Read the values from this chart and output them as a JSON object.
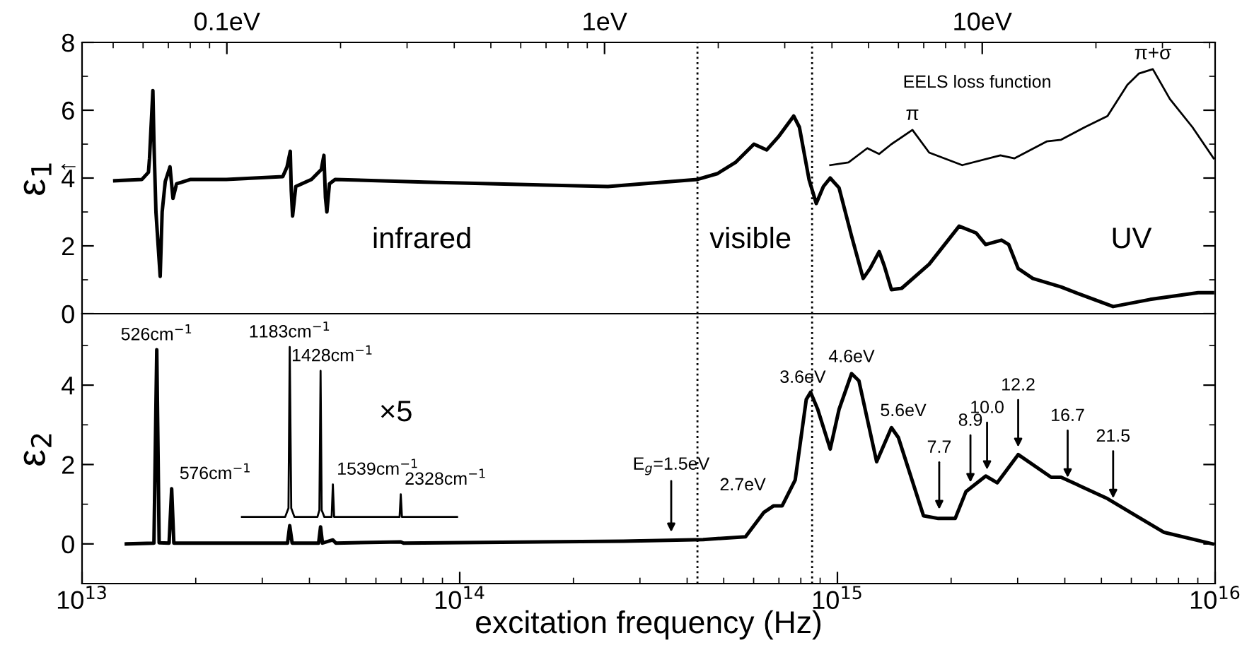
{
  "chart_data": [
    {
      "type": "line",
      "ylabel": "ε$_{1}$",
      "xlim": [
        0.04136,
        41.36
      ],
      "ylim": [
        0,
        8
      ],
      "log": "x",
      "yticks": [
        0,
        {
          "value": 1,
          "label": null
        },
        2,
        {
          "value": 3,
          "label": null
        },
        4,
        {
          "value": 5,
          "label": null
        },
        6,
        {
          "value": 7,
          "label": null
        },
        8
      ],
      "xticks": [
        {
          "value": 0.05,
          "label": null
        },
        {
          "value": 0.06,
          "label": null
        },
        {
          "value": 0.07,
          "label": null
        },
        {
          "value": 0.08,
          "label": null
        },
        {
          "value": 0.09,
          "label": null
        },
        {
          "value": 0.1,
          "label": "0.1eV"
        },
        {
          "value": 0.2,
          "label": null
        },
        {
          "value": 0.3,
          "label": null
        },
        {
          "value": 0.4,
          "label": null
        },
        {
          "value": 0.5,
          "label": null
        },
        {
          "value": 0.6,
          "label": null
        },
        {
          "value": 0.7,
          "label": null
        },
        {
          "value": 0.8,
          "label": null
        },
        {
          "value": 0.9,
          "label": null
        },
        {
          "value": 1,
          "label": "1eV"
        },
        {
          "value": 2,
          "label": null
        },
        {
          "value": 3,
          "label": null
        },
        {
          "value": 4,
          "label": null
        },
        {
          "value": 5,
          "label": null
        },
        {
          "value": 6,
          "label": null
        },
        {
          "value": 7,
          "label": null
        },
        {
          "value": 8,
          "label": null
        },
        {
          "value": 9,
          "label": null
        },
        {
          "value": 10,
          "label": "10eV"
        },
        {
          "value": 20,
          "label": null
        },
        {
          "value": 30,
          "label": null
        },
        {
          "value": 40,
          "label": null
        }
      ],
      "grid": false,
      "legend": false,
      "marker": "none",
      "line_style": "solid",
      "series": [
        {
          "color": "#000000",
          "x": [
            0.0505,
            0.0596,
            0.062,
            0.0624,
            0.0637,
            0.0641,
            0.0649,
            0.0666,
            0.0674,
            0.0687,
            0.0707,
            0.072,
            0.0736,
            0.0802,
            0.0997,
            0.1406,
            0.1443,
            0.1472,
            0.1481,
            0.1493,
            0.1522,
            0.1675,
            0.1778,
            0.1807,
            0.1824,
            0.184,
            0.1869,
            0.1935,
            0.333,
            1.021,
            1.762,
            1.989,
            2.221,
            2.486,
            2.688,
            2.883,
            3.168,
            3.28,
            3.478,
            3.635,
            3.797,
            3.958,
            4.177,
            4.508,
            4.839,
            5.046,
            5.335,
            5.5,
            5.749,
            6.121,
            7.237,
            8.685,
            9.636,
            10.21,
            11.25,
            11.75,
            12.45,
            13.61,
            16.17,
            18.07,
            22.21,
            27.83,
            37.3,
            40.69
          ],
          "values": [
            3.92,
            3.96,
            4.17,
            4.58,
            6.58,
            5.08,
            3.0,
            1.1,
            3.0,
            3.9,
            4.33,
            3.4,
            3.83,
            3.96,
            3.96,
            4.04,
            4.33,
            4.79,
            3.63,
            2.88,
            3.75,
            3.96,
            4.25,
            4.67,
            3.42,
            3.0,
            3.83,
            3.96,
            3.88,
            3.75,
            3.96,
            4.13,
            4.46,
            5.0,
            4.83,
            5.21,
            5.83,
            5.5,
            3.96,
            3.25,
            3.75,
            4.0,
            3.71,
            2.29,
            1.04,
            1.33,
            1.83,
            1.42,
            0.71,
            0.75,
            1.46,
            2.58,
            2.38,
            2.04,
            2.17,
            2.04,
            1.33,
            1.04,
            0.79,
            0.58,
            0.21,
            0.42,
            0.62,
            0.62
          ]
        },
        {
          "color": "#000000",
          "x": [
            3.958,
            4.425,
            4.963,
            5.335,
            5.749,
            6.534,
            7.237,
            8.85,
            11.17,
            12.16,
            14.81,
            16.17,
            18.69,
            21.46,
            24.23,
            25.97,
            28.29,
            31.39,
            36.02,
            40.98
          ],
          "values": [
            4.38,
            4.46,
            4.88,
            4.71,
            5.0,
            5.42,
            4.75,
            4.38,
            4.67,
            4.58,
            5.08,
            5.13,
            5.5,
            5.83,
            6.75,
            7.08,
            7.21,
            6.33,
            5.5,
            4.58
          ]
        }
      ],
      "ref_lines": [
        {
          "axis": "x",
          "value": 1.762,
          "color": "#000000",
          "line_style": "dotted"
        },
        {
          "axis": "x",
          "value": 3.544,
          "color": "#000000",
          "line_style": "dotted"
        }
      ],
      "annotations": [
        "infrared",
        "visible",
        "UV",
        "EELS loss function",
        {
          "text": "π",
          "x": 6.534,
          "y": 5.42
        },
        {
          "text": "π+σ",
          "x": 28.29,
          "y": 7.21
        },
        "←"
      ]
    },
    {
      "type": "line",
      "ylabel": "ε$_{2}$",
      "xlabel": "excitation frequency (Hz)",
      "xlim": [
        10000000000000.0,
        1e+16
      ],
      "ylim": [
        -1,
        5.8
      ],
      "log": "x",
      "xticks": [
        {
          "value": 10000000000000.0,
          "label": "10$^{13}$"
        },
        {
          "value": 20000000000000.0,
          "label": null
        },
        {
          "value": 30000000000000.0,
          "label": null
        },
        {
          "value": 40000000000000.0,
          "label": null
        },
        {
          "value": 50000000000000.0,
          "label": null
        },
        {
          "value": 60000000000000.0,
          "label": null
        },
        {
          "value": 70000000000000.0,
          "label": null
        },
        {
          "value": 80000000000000.0,
          "label": null
        },
        {
          "value": 90000000000000.0,
          "label": null
        },
        {
          "value": 100000000000000.0,
          "label": "10$^{14}$"
        },
        {
          "value": 200000000000000.0,
          "label": null
        },
        {
          "value": 300000000000000.0,
          "label": null
        },
        {
          "value": 400000000000000.0,
          "label": null
        },
        {
          "value": 500000000000000.0,
          "label": null
        },
        {
          "value": 600000000000000.0,
          "label": null
        },
        {
          "value": 700000000000000.0,
          "label": null
        },
        {
          "value": 800000000000000.0,
          "label": null
        },
        {
          "value": 900000000000000.0,
          "label": null
        },
        {
          "value": 1000000000000000.0,
          "label": "10$^{15}$"
        },
        {
          "value": 2000000000000000.0,
          "label": null
        },
        {
          "value": 3000000000000000.0,
          "label": null
        },
        {
          "value": 4000000000000000.0,
          "label": null
        },
        {
          "value": 5000000000000000.0,
          "label": null
        },
        {
          "value": 6000000000000000.0,
          "label": null
        },
        {
          "value": 7000000000000000.0,
          "label": null
        },
        {
          "value": 8000000000000000.0,
          "label": null
        },
        {
          "value": 9000000000000000.0,
          "label": null
        },
        {
          "value": 1e+16,
          "label": "10$^{16}$"
        }
      ],
      "yticks": [
        {
          "value": -1,
          "label": null
        },
        0,
        {
          "value": 1,
          "label": null
        },
        2,
        {
          "value": 3,
          "label": null
        },
        4,
        {
          "value": 5,
          "label": null
        }
      ],
      "grid": false,
      "legend": false,
      "marker": "none",
      "line_style": "solid",
      "series": [
        {
          "color": "#000000",
          "x": [
            13100000000000.0,
            15500000000000.0,
            15770000000000.0,
            16000000000000.0,
            17000000000000.0,
            17270000000000.0,
            17500000000000.0,
            35000000000000.0,
            35470000000000.0,
            36000000000000.0,
            42300000000000.0,
            42810000000000.0,
            43300000000000.0,
            46140000000000.0,
            47000000000000.0,
            69800000000000.0,
            71000000000000.0,
            271000000000000.0,
            441000000000000.0,
            571000000000000.0,
            638000000000000.0,
            678000000000000.0,
            714000000000000.0,
            773000000000000.0,
            827000000000000.0,
            849000000000000.0,
            887000000000000.0,
            957000000000000.0,
            1010000000000000.0,
            1090000000000000.0,
            1140000000000000.0,
            1270000000000000.0,
            1390000000000000.0,
            1450000000000000.0,
            1690000000000000.0,
            1850000000000000.0,
            2050000000000000.0,
            2190000000000000.0,
            2470000000000000.0,
            2650000000000000.0,
            3010000000000000.0,
            3680000000000000.0,
            3910000000000000.0,
            5190000000000000.0,
            6170000000000000.0,
            7330000000000000.0,
            9840000000000000.0
          ],
          "values": [
            0,
            0.02,
            4.89,
            0.03,
            0.02,
            1.39,
            0.02,
            0.02,
            0.46,
            0.02,
            0.02,
            0.43,
            0.02,
            0.1,
            0.02,
            0.05,
            0.02,
            0.07,
            0.11,
            0.18,
            0.79,
            0.96,
            0.96,
            1.61,
            3.64,
            3.82,
            3.39,
            2.39,
            3.39,
            4.29,
            4.11,
            2.07,
            2.93,
            2.68,
            0.71,
            0.64,
            0.64,
            1.32,
            1.71,
            1.54,
            2.25,
            1.68,
            1.68,
            1.14,
            0.71,
            0.29,
            0
          ]
        },
        {
          "color": "#000000",
          "x": [
            26500000000000.0,
            34500000000000.0,
            35200000000000.0,
            35470000000000.0,
            35800000000000.0,
            36500000000000.0,
            42000000000000.0,
            42500000000000.0,
            42810000000000.0,
            43100000000000.0,
            43800000000000.0,
            45800000000000.0,
            46140000000000.0,
            46500000000000.0,
            69300000000000.0,
            69800000000000.0,
            70300000000000.0,
            98400000000000.0
          ],
          "values": [
            0.68,
            0.68,
            0.9,
            4.96,
            0.9,
            0.68,
            0.68,
            0.85,
            4.36,
            0.85,
            0.68,
            0.68,
            1.5,
            0.68,
            0.68,
            1.25,
            0.68,
            0.68
          ]
        }
      ],
      "ref_lines": [
        {
          "axis": "x",
          "value": 426000000000000.0,
          "color": "#000000",
          "line_style": "dotted"
        },
        {
          "axis": "x",
          "value": 857000000000000.0,
          "color": "#000000",
          "line_style": "dotted"
        }
      ],
      "annotations": [
        {
          "text": "526cm$^{−1}$",
          "x": 15770000000000.0,
          "y": 4.89
        },
        {
          "text": "576cm$^{−1}$",
          "x": 17270000000000.0,
          "y": 1.39
        },
        {
          "text": "1183cm$^{−1}$",
          "x": 35470000000000.0,
          "y": 4.96
        },
        {
          "text": "1428cm$^{−1}$",
          "x": 42810000000000.0,
          "y": 4.36
        },
        {
          "text": "1539cm$^{−1}$",
          "x": 46140000000000.0,
          "y": 1.5
        },
        {
          "text": "2328cm$^{−1}$",
          "x": 69800000000000.0,
          "y": 1.25
        },
        "×5",
        {
          "text": "E$_{g}$=1.5eV",
          "x": 363000000000000.0,
          "y": 0.25
        },
        {
          "text": "2.7eV",
          "x": 678000000000000.0,
          "y": 0.96
        },
        {
          "text": "3.6eV",
          "x": 849000000000000.0,
          "y": 3.82
        },
        {
          "text": "4.6eV",
          "x": 1090000000000000.0,
          "y": 4.29
        },
        {
          "text": "5.6eV",
          "x": 1390000000000000.0,
          "y": 2.93
        },
        {
          "text": "7.7",
          "x": 1860000000000000.0,
          "y": 0.82
        },
        {
          "text": "8.9",
          "x": 2250000000000000.0,
          "y": 1.5
        },
        {
          "text": "10.0",
          "x": 2490000000000000.0,
          "y": 1.82
        },
        {
          "text": "12.2",
          "x": 3010000000000000.0,
          "y": 2.39
        },
        {
          "text": "16.7",
          "x": 4070000000000000.0,
          "y": 1.62
        },
        {
          "text": "21.5",
          "x": 5370000000000000.0,
          "y": 1.1
        }
      ]
    }
  ]
}
